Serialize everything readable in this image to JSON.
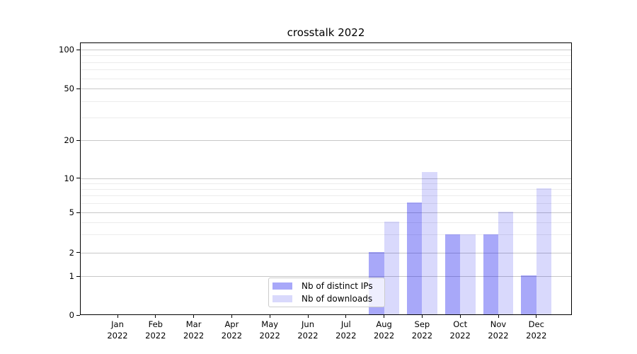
{
  "title": "crosstalk 2022",
  "chart_data": {
    "type": "bar",
    "title": "crosstalk 2022",
    "categories": [
      "Jan 2022",
      "Feb 2022",
      "Mar 2022",
      "Apr 2022",
      "May 2022",
      "Jun 2022",
      "Jul 2022",
      "Aug 2022",
      "Sep 2022",
      "Oct 2022",
      "Nov 2022",
      "Dec 2022"
    ],
    "series": [
      {
        "name": "Nb of distinct IPs",
        "values": [
          0,
          0,
          0,
          0,
          0,
          0,
          0,
          2,
          6,
          3,
          3,
          1
        ]
      },
      {
        "name": "Nb of downloads",
        "values": [
          0,
          0,
          0,
          0,
          0,
          0,
          0,
          4,
          11,
          3,
          5,
          8
        ]
      }
    ],
    "xlabel": "",
    "ylabel": "",
    "y_axis": {
      "ticks": [
        0,
        1,
        2,
        5,
        10,
        20,
        50,
        100
      ],
      "minor_gridlines": [
        3,
        4,
        6,
        7,
        8,
        9,
        30,
        40,
        60,
        70,
        80,
        90
      ],
      "scale": "log-like above 1, linear 0-1",
      "range_top": 115
    },
    "grid": true,
    "legend_position": "lower center"
  },
  "colors": {
    "series_fill": [
      "rgba(0,0,238,0.34)",
      "rgba(0,0,238,0.15)"
    ],
    "series_fill_hex_on_white": [
      "#a9a9f8",
      "#dadafb"
    ],
    "grid_major": "#c8c8c8",
    "grid_minor": "#ececec",
    "axis_line": "#000000",
    "legend_border": "#cccccc",
    "background": "#ffffff"
  }
}
